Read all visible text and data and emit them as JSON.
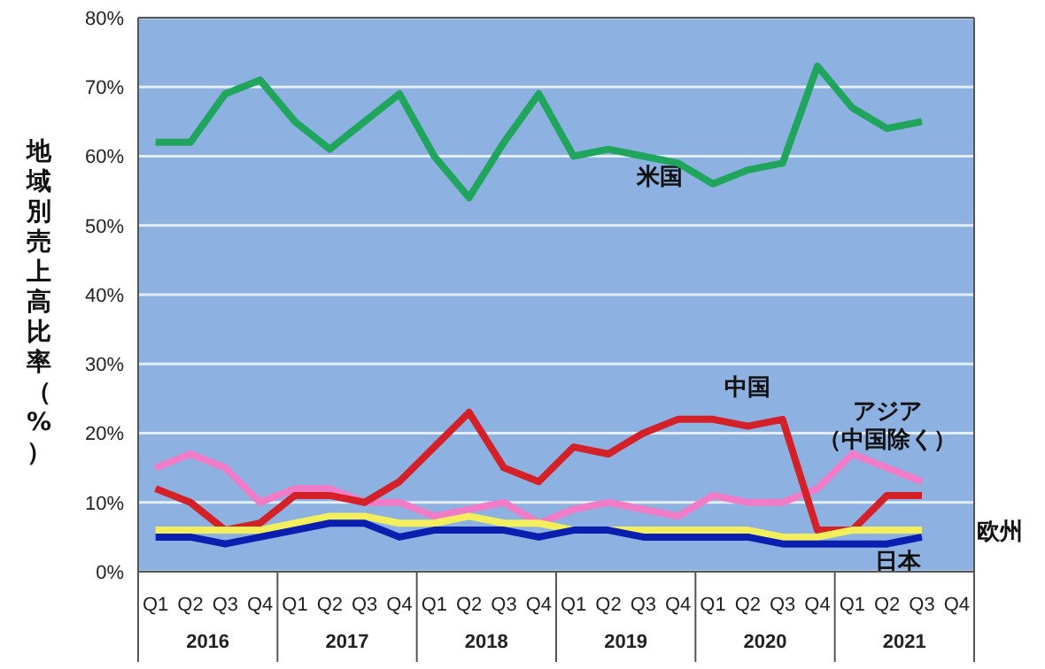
{
  "chart_data": {
    "type": "line",
    "ylabel": "地域別売上高比率（%）",
    "categories": [
      "Q1",
      "Q2",
      "Q3",
      "Q4",
      "Q1",
      "Q2",
      "Q3",
      "Q4",
      "Q1",
      "Q2",
      "Q3",
      "Q4",
      "Q1",
      "Q2",
      "Q3",
      "Q4",
      "Q1",
      "Q2",
      "Q3",
      "Q4",
      "Q1",
      "Q2",
      "Q3",
      "Q4"
    ],
    "annotations": [
      "2016",
      "2017",
      "2018",
      "2019",
      "2020",
      "2021"
    ],
    "ylim": [
      0,
      80
    ],
    "yticks": [
      {
        "value": 0,
        "label": "0%"
      },
      {
        "value": 10,
        "label": "10%"
      },
      {
        "value": 20,
        "label": "20%"
      },
      {
        "value": 30,
        "label": "30%"
      },
      {
        "value": 40,
        "label": "40%"
      },
      {
        "value": 50,
        "label": "50%"
      },
      {
        "value": 60,
        "label": "60%"
      },
      {
        "value": 70,
        "label": "70%"
      },
      {
        "value": 80,
        "label": "80%"
      }
    ],
    "grid": "y",
    "marker": "none",
    "line_style": "solid",
    "series": [
      {
        "name": "米国",
        "color": "#1fa55c",
        "values": [
          62,
          62,
          69,
          71,
          65,
          61,
          65,
          69,
          60,
          54,
          62,
          69,
          60,
          61,
          60,
          59,
          56,
          58,
          59,
          73,
          67,
          64,
          65,
          null
        ]
      },
      {
        "name": "アジア（中国除く）",
        "color": "#f07cc8",
        "values": [
          15,
          17,
          15,
          10,
          12,
          12,
          10,
          10,
          8,
          9,
          10,
          7,
          9,
          10,
          9,
          8,
          11,
          10,
          10,
          12,
          17,
          15,
          13,
          null
        ]
      },
      {
        "name": "中国",
        "color": "#d42027",
        "values": [
          12,
          10,
          6,
          7,
          11,
          11,
          10,
          13,
          18,
          23,
          15,
          13,
          18,
          17,
          20,
          22,
          22,
          21,
          22,
          6,
          6,
          11,
          11,
          null
        ]
      },
      {
        "name": "欧州",
        "color": "#f2ee5c",
        "values": [
          6,
          6,
          6,
          6,
          7,
          8,
          8,
          7,
          7,
          8,
          7,
          7,
          6,
          6,
          6,
          6,
          6,
          6,
          5,
          5,
          6,
          6,
          6,
          null
        ]
      },
      {
        "name": "日本",
        "color": "#0a1fb0",
        "values": [
          5,
          5,
          4,
          5,
          6,
          7,
          7,
          5,
          6,
          6,
          6,
          5,
          6,
          6,
          5,
          5,
          5,
          5,
          4,
          4,
          4,
          4,
          5,
          null
        ]
      }
    ]
  }
}
